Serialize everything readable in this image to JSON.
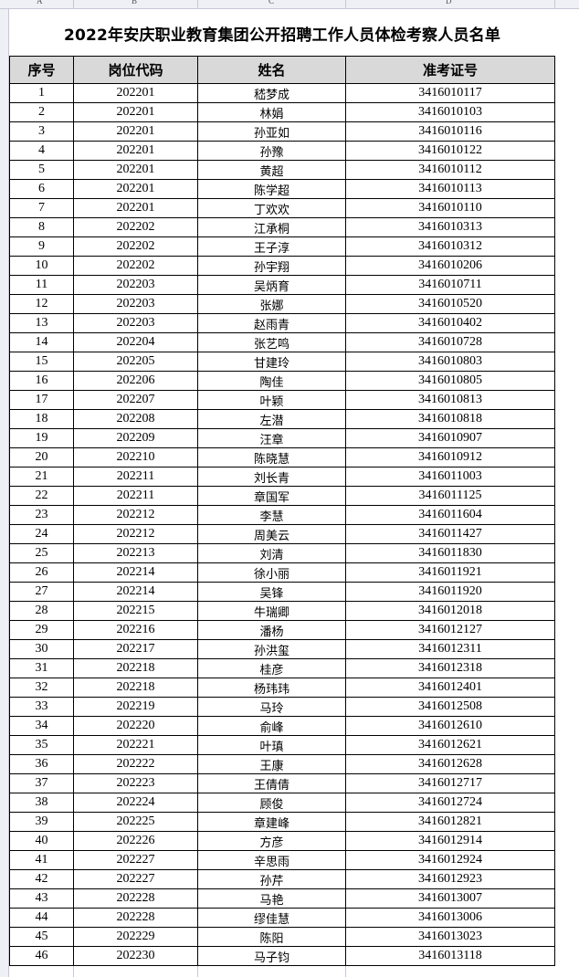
{
  "sheet": {
    "columns": [
      "A",
      "B",
      "C",
      "D"
    ]
  },
  "title": "2022年安庆职业教育集团公开招聘工作人员体检考察人员名单",
  "table": {
    "headers": [
      "序号",
      "岗位代码",
      "姓名",
      "准考证号"
    ],
    "rows": [
      [
        "1",
        "202201",
        "嵇梦成",
        "3416010117"
      ],
      [
        "2",
        "202201",
        "林娟",
        "3416010103"
      ],
      [
        "3",
        "202201",
        "孙亚如",
        "3416010116"
      ],
      [
        "4",
        "202201",
        "孙豫",
        "3416010122"
      ],
      [
        "5",
        "202201",
        "黄超",
        "3416010112"
      ],
      [
        "6",
        "202201",
        "陈学超",
        "3416010113"
      ],
      [
        "7",
        "202201",
        "丁欢欢",
        "3416010110"
      ],
      [
        "8",
        "202202",
        "江承桐",
        "3416010313"
      ],
      [
        "9",
        "202202",
        "王子淳",
        "3416010312"
      ],
      [
        "10",
        "202202",
        "孙宇翔",
        "3416010206"
      ],
      [
        "11",
        "202203",
        "吴炳育",
        "3416010711"
      ],
      [
        "12",
        "202203",
        "张娜",
        "3416010520"
      ],
      [
        "13",
        "202203",
        "赵雨青",
        "3416010402"
      ],
      [
        "14",
        "202204",
        "张艺鸣",
        "3416010728"
      ],
      [
        "15",
        "202205",
        "甘建玲",
        "3416010803"
      ],
      [
        "16",
        "202206",
        "陶佳",
        "3416010805"
      ],
      [
        "17",
        "202207",
        "叶颖",
        "3416010813"
      ],
      [
        "18",
        "202208",
        "左潜",
        "3416010818"
      ],
      [
        "19",
        "202209",
        "汪章",
        "3416010907"
      ],
      [
        "20",
        "202210",
        "陈晓慧",
        "3416010912"
      ],
      [
        "21",
        "202211",
        "刘长青",
        "3416011003"
      ],
      [
        "22",
        "202211",
        "章国军",
        "3416011125"
      ],
      [
        "23",
        "202212",
        "李慧",
        "3416011604"
      ],
      [
        "24",
        "202212",
        "周美云",
        "3416011427"
      ],
      [
        "25",
        "202213",
        "刘清",
        "3416011830"
      ],
      [
        "26",
        "202214",
        "徐小丽",
        "3416011921"
      ],
      [
        "27",
        "202214",
        "吴锋",
        "3416011920"
      ],
      [
        "28",
        "202215",
        "牛瑞卿",
        "3416012018"
      ],
      [
        "29",
        "202216",
        "潘杨",
        "3416012127"
      ],
      [
        "30",
        "202217",
        "孙洪玺",
        "3416012311"
      ],
      [
        "31",
        "202218",
        "桂彦",
        "3416012318"
      ],
      [
        "32",
        "202218",
        "杨玮玮",
        "3416012401"
      ],
      [
        "33",
        "202219",
        "马玲",
        "3416012508"
      ],
      [
        "34",
        "202220",
        "俞峰",
        "3416012610"
      ],
      [
        "35",
        "202221",
        "叶瑱",
        "3416012621"
      ],
      [
        "36",
        "202222",
        "王康",
        "3416012628"
      ],
      [
        "37",
        "202223",
        "王倩倩",
        "3416012717"
      ],
      [
        "38",
        "202224",
        "顾俊",
        "3416012724"
      ],
      [
        "39",
        "202225",
        "章建峰",
        "3416012821"
      ],
      [
        "40",
        "202226",
        "方彦",
        "3416012914"
      ],
      [
        "41",
        "202227",
        "辛思雨",
        "3416012924"
      ],
      [
        "42",
        "202227",
        "孙芹",
        "3416012923"
      ],
      [
        "43",
        "202228",
        "马艳",
        "3416013007"
      ],
      [
        "44",
        "202228",
        "缪佳慧",
        "3416013006"
      ],
      [
        "45",
        "202229",
        "陈阳",
        "3416013023"
      ],
      [
        "46",
        "202230",
        "马子钧",
        "3416013118"
      ]
    ]
  }
}
